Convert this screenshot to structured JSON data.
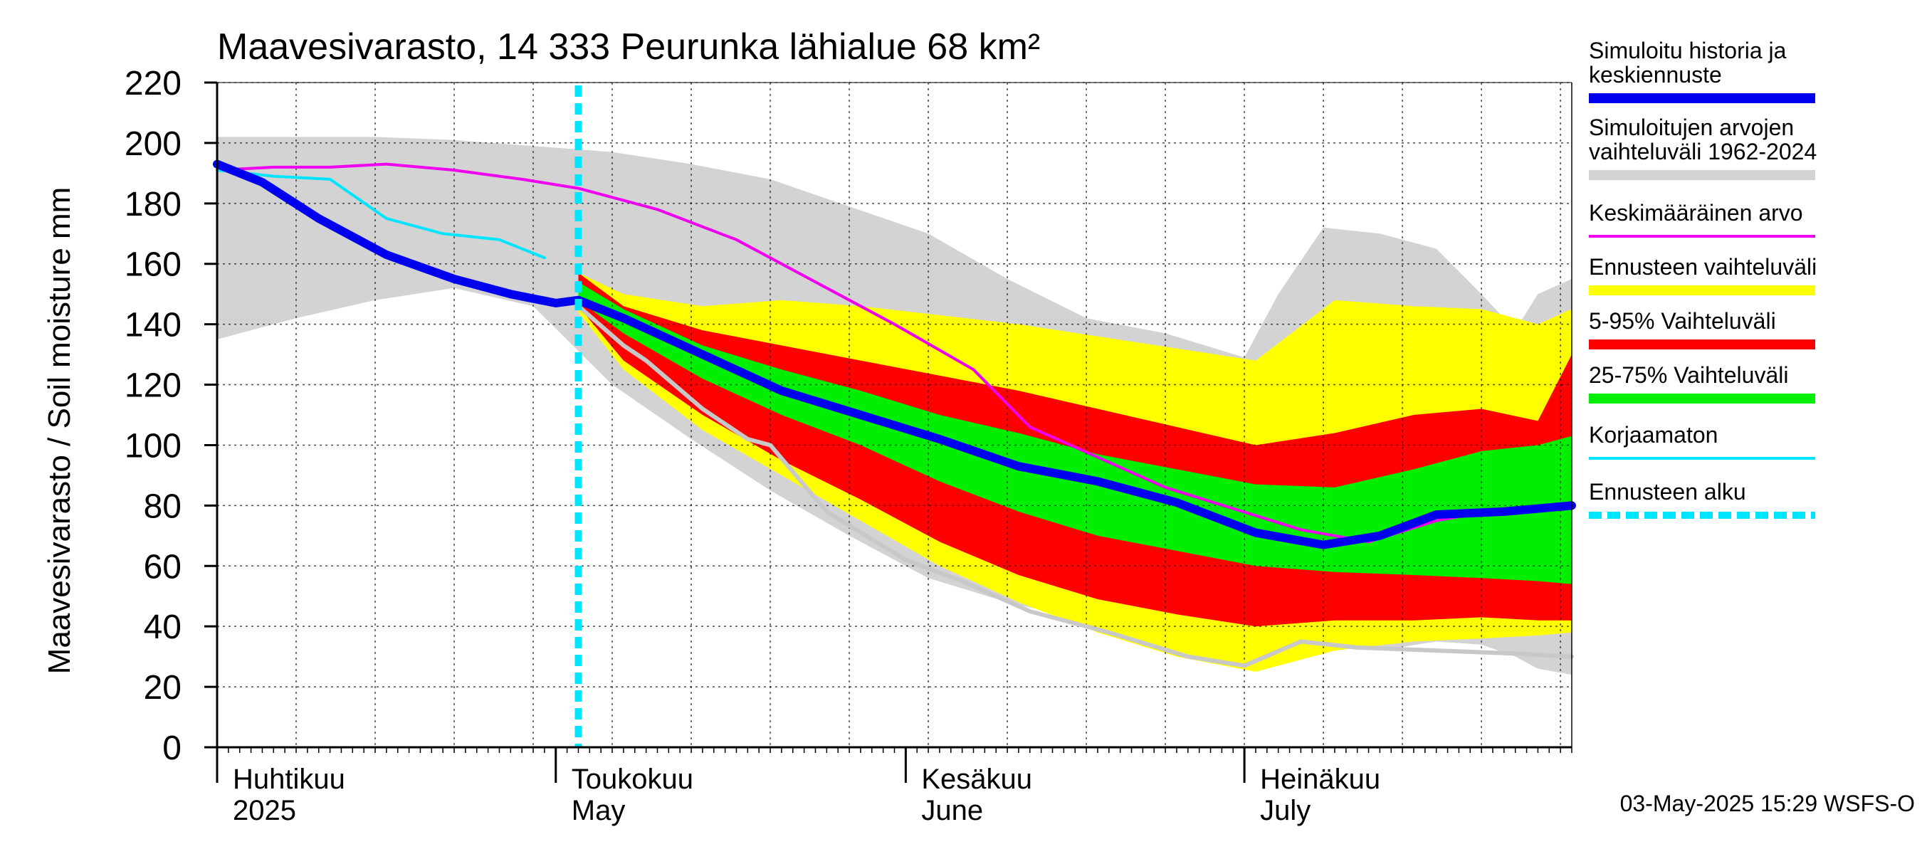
{
  "chart_data": {
    "type": "area",
    "title": "Maavesivarasto, 14 333 Peurunka lähialue 68 km²",
    "ylabel": "Maavesivarasto / Soil moisture   mm",
    "ylim": [
      0,
      220
    ],
    "yticks": [
      0,
      20,
      40,
      60,
      80,
      100,
      120,
      140,
      160,
      180,
      200,
      220
    ],
    "xlim": [
      "2025-04-01",
      "2025-07-30"
    ],
    "x_months": [
      {
        "fi": "Huhtikuu",
        "en": "2025",
        "start": "2025-04-01"
      },
      {
        "fi": "Toukokuu",
        "en": "May",
        "start": "2025-05-01"
      },
      {
        "fi": "Kesäkuu",
        "en": "June",
        "start": "2025-06-01"
      },
      {
        "fi": "Heinäkuu",
        "en": "July",
        "start": "2025-07-01"
      }
    ],
    "forecast_start": "2025-05-03",
    "timestamp": "03-May-2025 15:29 WSFS-O",
    "grid": true,
    "legend_position": "right",
    "legend": [
      {
        "key": "history",
        "label": "Simuloitu historia ja keskiennuste",
        "color": "#0000ee"
      },
      {
        "key": "range",
        "label": "Simuloitujen arvojen vaihteluväli 1962-2024",
        "color": "#d3d3d3"
      },
      {
        "key": "mean",
        "label": "Keskimääräinen arvo",
        "color": "#ee00ee"
      },
      {
        "key": "fc_range",
        "label": "Ennusteen vaihteluväli",
        "color": "#ffff00"
      },
      {
        "key": "p5_95",
        "label": "5-95% Vaihteluväli",
        "color": "#ff0000"
      },
      {
        "key": "p25_75",
        "label": "25-75% Vaihteluväli",
        "color": "#00ee00"
      },
      {
        "key": "uncorrected",
        "label": "Korjaamaton",
        "color": "#00e5ff"
      },
      {
        "key": "fc_start",
        "label": "Ennusteen alku",
        "color": "#00e5ff"
      }
    ],
    "series": [
      {
        "key": "range",
        "x": [
          "2025-04-01",
          "2025-04-08",
          "2025-04-15",
          "2025-04-22",
          "2025-04-29",
          "2025-05-06",
          "2025-05-13",
          "2025-05-20",
          "2025-05-27",
          "2025-06-03",
          "2025-06-10",
          "2025-06-17",
          "2025-06-24",
          "2025-07-01",
          "2025-07-04",
          "2025-07-08",
          "2025-07-13",
          "2025-07-18",
          "2025-07-22",
          "2025-07-25",
          "2025-07-27",
          "2025-07-30"
        ],
        "upper": [
          202,
          202,
          202,
          201,
          199,
          197,
          193,
          188,
          179,
          170,
          155,
          142,
          137,
          129,
          150,
          172,
          170,
          165,
          150,
          138,
          150,
          155
        ],
        "lower": [
          135,
          142,
          148,
          152,
          146,
          120,
          102,
          85,
          70,
          56,
          48,
          42,
          35,
          28,
          30,
          34,
          32,
          35,
          34,
          30,
          26,
          24
        ]
      },
      {
        "key": "fc_range",
        "x": [
          "2025-05-03",
          "2025-05-07",
          "2025-05-14",
          "2025-05-21",
          "2025-05-28",
          "2025-06-04",
          "2025-06-11",
          "2025-06-18",
          "2025-06-25",
          "2025-07-02",
          "2025-07-09",
          "2025-07-16",
          "2025-07-22",
          "2025-07-27",
          "2025-07-30"
        ],
        "upper": [
          157,
          150,
          146,
          148,
          146,
          143,
          140,
          136,
          132,
          128,
          148,
          146,
          145,
          140,
          145
        ],
        "lower": [
          144,
          125,
          105,
          90,
          75,
          60,
          48,
          38,
          30,
          25,
          32,
          35,
          36,
          37,
          38
        ]
      },
      {
        "key": "p5_95",
        "x": [
          "2025-05-03",
          "2025-05-07",
          "2025-05-14",
          "2025-05-21",
          "2025-05-28",
          "2025-06-04",
          "2025-06-11",
          "2025-06-18",
          "2025-06-25",
          "2025-07-02",
          "2025-07-09",
          "2025-07-16",
          "2025-07-22",
          "2025-07-27",
          "2025-07-30"
        ],
        "upper": [
          157,
          146,
          138,
          133,
          128,
          123,
          118,
          112,
          106,
          100,
          104,
          110,
          112,
          108,
          130
        ],
        "lower": [
          146,
          128,
          110,
          95,
          82,
          68,
          57,
          49,
          44,
          40,
          42,
          42,
          43,
          42,
          42
        ]
      },
      {
        "key": "p25_75",
        "x": [
          "2025-05-03",
          "2025-05-07",
          "2025-05-14",
          "2025-05-21",
          "2025-05-28",
          "2025-06-04",
          "2025-06-11",
          "2025-06-18",
          "2025-06-25",
          "2025-07-02",
          "2025-07-09",
          "2025-07-16",
          "2025-07-22",
          "2025-07-27",
          "2025-07-30"
        ],
        "upper": [
          154,
          145,
          133,
          125,
          118,
          110,
          104,
          97,
          92,
          87,
          86,
          92,
          98,
          100,
          103
        ],
        "lower": [
          148,
          137,
          122,
          110,
          100,
          88,
          78,
          70,
          65,
          60,
          58,
          57,
          56,
          55,
          54
        ]
      },
      {
        "key": "mean",
        "x": [
          "2025-04-01",
          "2025-04-06",
          "2025-04-11",
          "2025-04-16",
          "2025-04-22",
          "2025-04-28",
          "2025-05-03",
          "2025-05-10",
          "2025-05-17",
          "2025-05-24",
          "2025-05-31",
          "2025-06-07",
          "2025-06-12",
          "2025-06-18",
          "2025-06-24",
          "2025-06-30",
          "2025-07-06",
          "2025-07-12",
          "2025-07-18",
          "2025-07-24",
          "2025-07-30"
        ],
        "values": [
          191,
          192,
          192,
          193,
          191,
          188,
          185,
          178,
          168,
          154,
          140,
          125,
          106,
          96,
          86,
          79,
          72,
          68,
          75,
          79,
          80
        ]
      },
      {
        "key": "uncorrected",
        "x": [
          "2025-04-01",
          "2025-04-06",
          "2025-04-11",
          "2025-04-16",
          "2025-04-21",
          "2025-04-26",
          "2025-04-30"
        ],
        "values": [
          191,
          189,
          188,
          175,
          170,
          168,
          162
        ]
      },
      {
        "key": "corrected",
        "x": [
          "2025-05-03",
          "2025-05-07",
          "2025-05-09",
          "2025-05-14",
          "2025-05-18",
          "2025-05-20",
          "2025-05-25",
          "2025-06-01",
          "2025-06-06",
          "2025-06-12",
          "2025-06-19",
          "2025-06-26",
          "2025-07-01",
          "2025-07-06",
          "2025-07-11",
          "2025-07-18",
          "2025-07-25",
          "2025-07-30"
        ],
        "values": [
          146,
          133,
          128,
          112,
          102,
          100,
          78,
          62,
          55,
          45,
          38,
          30,
          27,
          35,
          33,
          32,
          31,
          30
        ]
      },
      {
        "key": "history",
        "x": [
          "2025-04-01",
          "2025-04-05",
          "2025-04-10",
          "2025-04-16",
          "2025-04-22",
          "2025-04-27",
          "2025-05-01",
          "2025-05-03",
          "2025-05-07",
          "2025-05-14",
          "2025-05-21",
          "2025-05-28",
          "2025-06-04",
          "2025-06-11",
          "2025-06-18",
          "2025-06-25",
          "2025-07-02",
          "2025-07-08",
          "2025-07-13",
          "2025-07-18",
          "2025-07-24",
          "2025-07-30"
        ],
        "values": [
          193,
          187,
          175,
          163,
          155,
          150,
          147,
          148,
          142,
          130,
          118,
          110,
          102,
          93,
          88,
          81,
          71,
          67,
          70,
          77,
          78,
          80
        ]
      }
    ]
  }
}
